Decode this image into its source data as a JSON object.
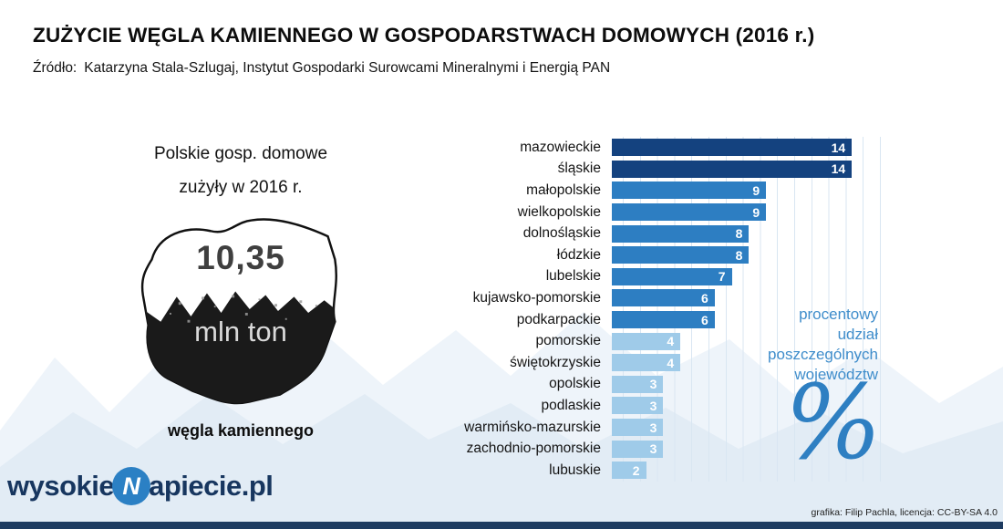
{
  "header": {
    "title": "ZUŻYCIE WĘGLA KAMIENNEGO W GOSPODARSTWACH DOMOWYCH (2016 r.)",
    "source_label": "Źródło:",
    "source_text": "Katarzyna Stala-Szlugaj,  Instytut Gospodarki Surowcami Mineralnymi i Energią PAN"
  },
  "left_panel": {
    "intro_line1": "Polskie gosp. domowe",
    "intro_line2": "zużyły w 2016 r.",
    "amount": "10,35",
    "unit": "mln ton",
    "caption": "węgla kamiennego"
  },
  "chart_data": {
    "type": "bar",
    "orientation": "horizontal",
    "title": "procentowy udział poszczególnych województw",
    "categories": [
      "mazowieckie",
      "śląskie",
      "małopolskie",
      "wielkopolskie",
      "dolnośląskie",
      "łódzkie",
      "lubelskie",
      "kujawsko-pomorskie",
      "podkarpackie",
      "pomorskie",
      "świętokrzyskie",
      "opolskie",
      "podlaskie",
      "warmińsko-mazurskie",
      "zachodnio-pomorskie",
      "lubuskie"
    ],
    "values": [
      14,
      14,
      9,
      9,
      8,
      8,
      7,
      6,
      6,
      4,
      4,
      3,
      3,
      3,
      3,
      2
    ],
    "value_unit": "%",
    "xlim": [
      0,
      15
    ],
    "grid": true,
    "colors": {
      "high": "#14427f",
      "mid": "#2d7ec2",
      "low": "#9fcbe9"
    },
    "color_thresholds": {
      "high_min": 10,
      "mid_min": 5
    }
  },
  "annotation": {
    "lines": [
      "procentowy",
      "udział",
      "poszczególnych",
      "województw"
    ],
    "symbol": "%",
    "text_color": "#3f8dcb",
    "symbol_color": "#2e7fc2"
  },
  "footer": {
    "logo_prefix": "wysokie",
    "logo_icon_letter": "N",
    "logo_suffix": "apiecie.pl",
    "credit": "grafika: Filip Pachla, licencja: CC-BY-SA 4.0"
  }
}
